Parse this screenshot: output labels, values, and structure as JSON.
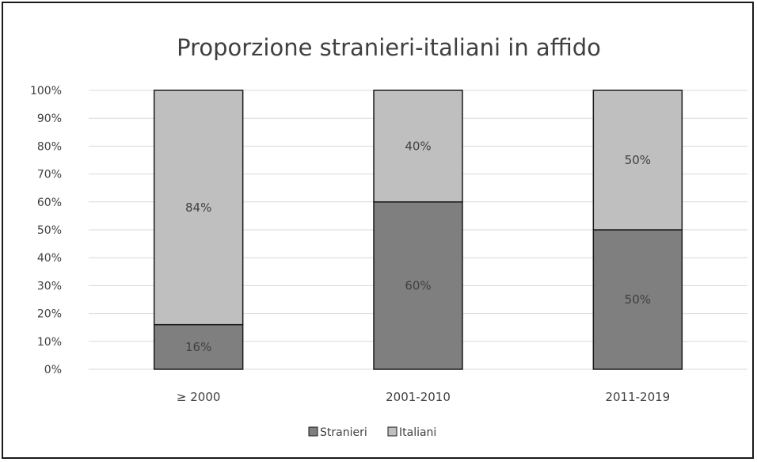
{
  "colors": {
    "stranieri": "#7f7f7f",
    "italiani": "#bfbfbf",
    "gridline": "#d9d9d9",
    "bar_border": "#1a1a1a",
    "text": "#404040"
  },
  "chart_data": {
    "type": "bar",
    "stacked": true,
    "title": "Proporzione stranieri-italiani in affido",
    "xlabel": "",
    "ylabel": "",
    "categories": [
      "≥ 2000",
      "2001-2010",
      "2011-2019"
    ],
    "ylim": [
      0,
      100
    ],
    "yticks": [
      "0%",
      "10%",
      "20%",
      "30%",
      "40%",
      "50%",
      "60%",
      "70%",
      "80%",
      "90%",
      "100%"
    ],
    "grid": true,
    "legend_position": "bottom",
    "series": [
      {
        "name": "Stranieri",
        "values": [
          16,
          60,
          50
        ],
        "labels": [
          "16%",
          "60%",
          "50%"
        ],
        "color": "#7f7f7f"
      },
      {
        "name": "Italiani",
        "values": [
          84,
          40,
          50
        ],
        "labels": [
          "84%",
          "40%",
          "50%"
        ],
        "color": "#bfbfbf"
      }
    ]
  }
}
